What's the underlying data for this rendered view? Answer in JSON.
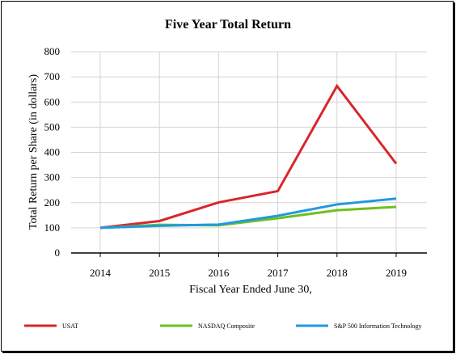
{
  "chart_data": {
    "type": "line",
    "title": "Five Year Total Return",
    "xlabel": "Fiscal Year Ended June 30,",
    "ylabel": "Total Return per Share (in dollars)",
    "x": [
      "2014",
      "2015",
      "2016",
      "2017",
      "2018",
      "2019"
    ],
    "ylim": [
      0,
      800
    ],
    "yticks": [
      0,
      100,
      200,
      300,
      400,
      500,
      600,
      700,
      800
    ],
    "grid": true,
    "legend_position": "bottom",
    "series": [
      {
        "name": "USAT",
        "color": "#d9262b",
        "values": [
          100,
          127,
          201,
          246,
          664,
          355
        ]
      },
      {
        "name": "NASDAQ Composite",
        "color": "#6ec01e",
        "values": [
          100,
          112,
          110,
          138,
          170,
          183
        ]
      },
      {
        "name": "S&P 500 Information Technology",
        "color": "#1f9ae0",
        "values": [
          100,
          108,
          113,
          148,
          193,
          216
        ]
      }
    ]
  }
}
